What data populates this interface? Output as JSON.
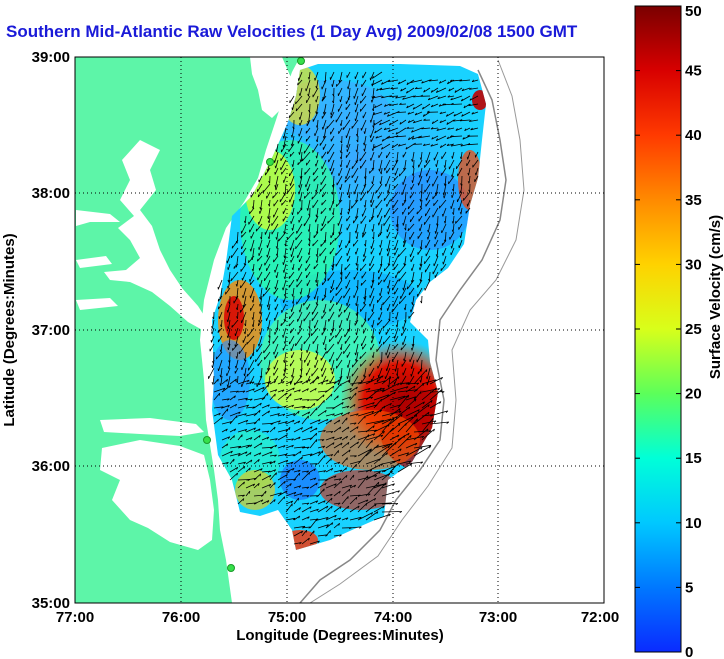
{
  "title": "Southern Mid-Atlantic Raw Velocities (1 Day Avg) 2009/02/08 1500 GMT",
  "map": {
    "xlabel": "Longitude (Degrees:Minutes)",
    "ylabel": "Latitude (Degrees:Minutes)",
    "x_ticks": [
      "77:00",
      "76:00",
      "75:00",
      "74:00",
      "73:00",
      "72:00"
    ],
    "y_ticks": [
      "39:00",
      "38:00",
      "37:00",
      "36:00",
      "35:00"
    ],
    "lon_range": [
      -77,
      -72
    ],
    "lat_range": [
      35,
      39
    ],
    "grid": true
  },
  "colorbar": {
    "label": "Surface Velocity (cm/s)",
    "ticks": [
      "0",
      "5",
      "10",
      "15",
      "20",
      "25",
      "30",
      "35",
      "40",
      "45",
      "50"
    ],
    "range": [
      0,
      50
    ],
    "colors": [
      "#0a2bff",
      "#0078ff",
      "#00c8ff",
      "#00ffd8",
      "#5cff5a",
      "#d8ff1a",
      "#ffd200",
      "#ff8a00",
      "#ff3a00",
      "#d80000",
      "#7a0000"
    ]
  },
  "colors": {
    "land": "#5df5a8",
    "water": "#ffffff",
    "title": "#1a1ad8",
    "station": "#36e04a"
  },
  "stations": [
    "station-1",
    "station-2",
    "station-3",
    "station-4"
  ]
}
